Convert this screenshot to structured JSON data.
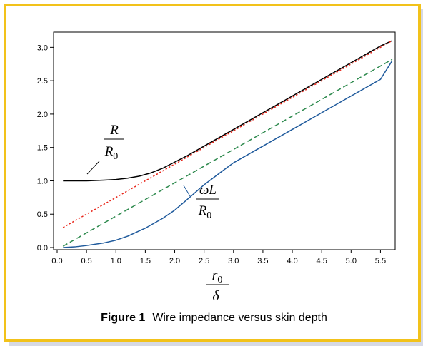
{
  "chart_data": {
    "type": "line",
    "xlim": [
      0.0,
      5.75
    ],
    "ylim": [
      0.0,
      3.1
    ],
    "grid": false,
    "x_ticks": [
      "0.0",
      "0.5",
      "1.0",
      "1.5",
      "2.0",
      "2.5",
      "3.0",
      "3.5",
      "4.0",
      "4.5",
      "5.0",
      "5.5"
    ],
    "y_ticks": [
      "0.0",
      "0.5",
      "1.0",
      "1.5",
      "2.0",
      "2.5",
      "3.0"
    ],
    "xlabel": {
      "numerator": "r",
      "numerator_sub": "0",
      "denominator": "δ"
    },
    "series": [
      {
        "color": "#000000",
        "style": "solid",
        "x": [
          0.1,
          0.5,
          0.8,
          1.0,
          1.2,
          1.4,
          1.6,
          1.8,
          2.0,
          2.2,
          2.5,
          3.0,
          3.5,
          4.0,
          4.5,
          5.0,
          5.5,
          5.7
        ],
        "y": [
          1.0,
          1.0,
          1.01,
          1.02,
          1.04,
          1.07,
          1.12,
          1.19,
          1.28,
          1.37,
          1.52,
          1.77,
          2.02,
          2.27,
          2.52,
          2.77,
          3.02,
          3.1
        ]
      },
      {
        "color": "#e8261a",
        "style": "dotted",
        "x": [
          0.1,
          5.7
        ],
        "y": [
          0.3,
          3.1
        ]
      },
      {
        "color": "#2e8a4e",
        "style": "dashed",
        "x": [
          0.1,
          5.7
        ],
        "y": [
          0.02,
          2.82
        ]
      },
      {
        "color": "#1f5a9c",
        "style": "solid",
        "x": [
          0.1,
          0.3,
          0.5,
          0.8,
          1.0,
          1.2,
          1.5,
          1.8,
          2.0,
          2.2,
          2.5,
          2.8,
          3.0,
          3.5,
          4.0,
          4.5,
          5.0,
          5.5,
          5.7
        ],
        "y": [
          0.0,
          0.01,
          0.03,
          0.07,
          0.11,
          0.17,
          0.29,
          0.44,
          0.56,
          0.71,
          0.94,
          1.14,
          1.27,
          1.52,
          1.77,
          2.02,
          2.27,
          2.52,
          2.8
        ]
      }
    ],
    "annotations": {
      "R": {
        "numerator": "R",
        "denominator": "R",
        "denominator_sub": "0"
      },
      "L": {
        "numerator": "ωL",
        "denominator": "R",
        "denominator_sub": "0"
      }
    }
  },
  "caption": {
    "figure": "Figure 1",
    "text": "Wire impedance versus skin depth"
  }
}
